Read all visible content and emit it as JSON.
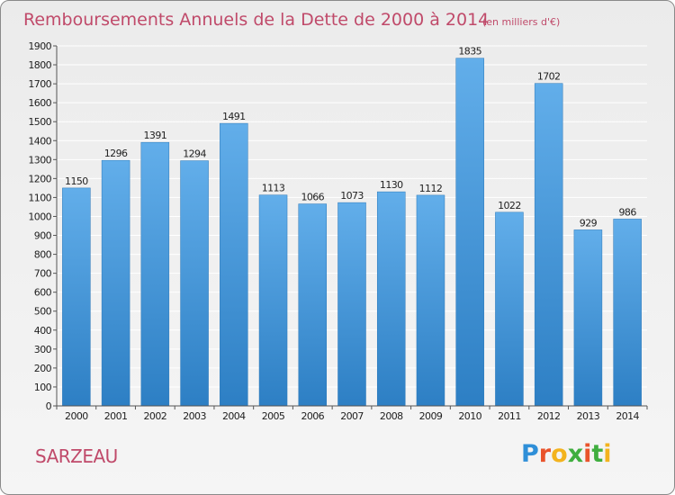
{
  "chart_data": {
    "type": "bar",
    "title": "Remboursements Annuels de la Dette de 2000 à 2014",
    "unit_note": "(en milliers d'€)",
    "xlabel": "",
    "ylabel": "",
    "categories": [
      "2000",
      "2001",
      "2002",
      "2003",
      "2004",
      "2005",
      "2006",
      "2007",
      "2008",
      "2009",
      "2010",
      "2011",
      "2012",
      "2013",
      "2014"
    ],
    "values": [
      1150,
      1296,
      1391,
      1294,
      1491,
      1113,
      1066,
      1073,
      1130,
      1112,
      1835,
      1022,
      1702,
      929,
      986
    ],
    "ylim": [
      0,
      1900
    ],
    "ytick_step": 100,
    "grid": true,
    "bar_color_light": "#62aeea",
    "bar_color_dark": "#2d7fc4"
  },
  "commune": "SARZEAU",
  "brand": {
    "letters": [
      "P",
      "r",
      "o",
      "x",
      "i",
      "t",
      "i"
    ],
    "colors": [
      "#2f8fd8",
      "#e9532b",
      "#f3b31e",
      "#3fae3f",
      "#e9532b",
      "#3fae3f",
      "#f3b31e"
    ]
  },
  "colors": {
    "title": "#c04a6a",
    "grid": "#ffffff",
    "axis": "#555555"
  }
}
